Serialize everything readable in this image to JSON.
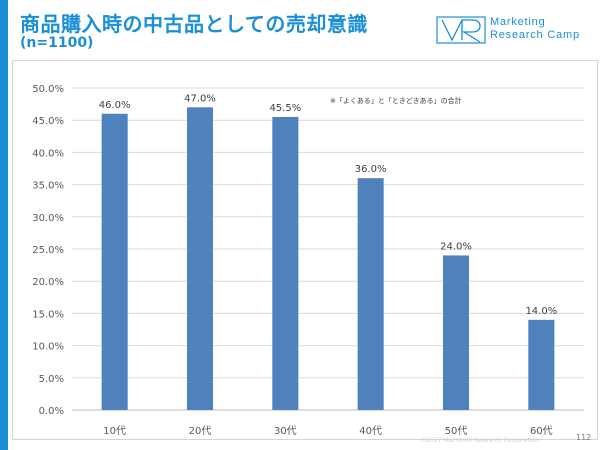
{
  "header": {
    "title": "商品購入時の中古品としての売却意識",
    "subtitle": "(n=1100)"
  },
  "brand": {
    "name_line1": "Marketing",
    "name_line2": "Research Camp",
    "color": "#1a8fd6"
  },
  "footer": {
    "copyright": "©2017 Macromill Research Corporation",
    "page_number": "112"
  },
  "chart_data": {
    "type": "bar",
    "categories": [
      "10代",
      "20代",
      "30代",
      "40代",
      "50代",
      "60代"
    ],
    "values": [
      46.0,
      47.0,
      45.5,
      36.0,
      24.0,
      14.0
    ],
    "value_labels": [
      "46.0%",
      "47.0%",
      "45.5%",
      "36.0%",
      "24.0%",
      "14.0%"
    ],
    "ylim": [
      0,
      50
    ],
    "yticks": [
      0,
      5,
      10,
      15,
      20,
      25,
      30,
      35,
      40,
      45,
      50
    ],
    "ytick_labels": [
      "0.0%",
      "5.0%",
      "10.0%",
      "15.0%",
      "20.0%",
      "25.0%",
      "30.0%",
      "35.0%",
      "40.0%",
      "45.0%",
      "50.0%"
    ],
    "grid": true,
    "bar_color": "#4f81bd",
    "annotation": "※「よくある」と「ときどきある」の合計",
    "xlabel": "",
    "ylabel": ""
  }
}
